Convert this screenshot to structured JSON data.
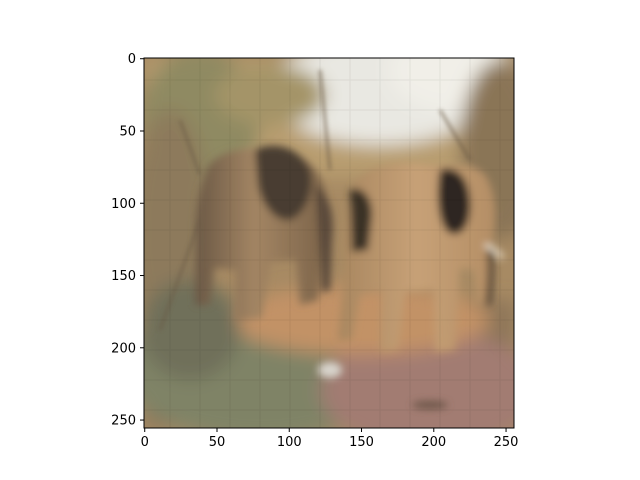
{
  "chart_data": {
    "type": "image",
    "title": "",
    "xlabel": "",
    "ylabel": "",
    "image_size": [
      256,
      256
    ],
    "xlim": [
      0,
      256
    ],
    "ylim": [
      256,
      0
    ],
    "x_ticks": [
      0,
      50,
      100,
      150,
      200,
      250
    ],
    "y_ticks": [
      0,
      50,
      100,
      150,
      200,
      250
    ],
    "x_tick_labels": [
      "0",
      "50",
      "100",
      "150",
      "200",
      "250"
    ],
    "y_tick_labels": [
      "0",
      "50",
      "100",
      "150",
      "200",
      "250"
    ],
    "image_content": "",
    "colors": {
      "sky": "#e9e8e2",
      "foliage_light": "#b39a6a",
      "foliage_green": "#8f8a62",
      "ground": "#b7875d",
      "ground_dark": "#7a6248",
      "elephant_body": "#b8936a",
      "elephant_shadow": "#3b3026",
      "tusk": "#efe6d6",
      "pink_ground": "#b28b80"
    }
  }
}
